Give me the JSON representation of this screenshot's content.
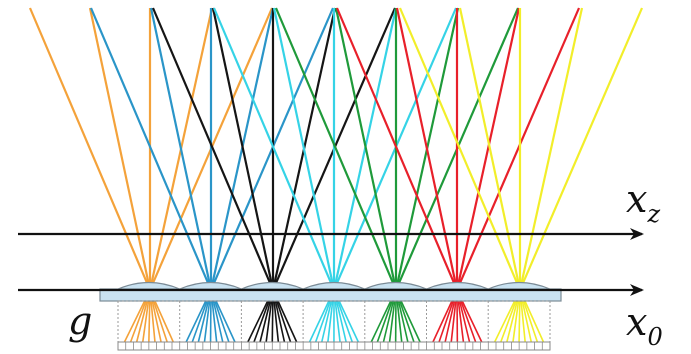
{
  "labels": {
    "axis_top": "x",
    "axis_top_sub": "z",
    "axis_bottom": "x",
    "axis_bottom_sub": "0",
    "gap": "g"
  },
  "colors": {
    "orange": "#f4a23a",
    "blue": "#2a95c8",
    "black": "#151515",
    "cyan": "#35d3e6",
    "green": "#1f9a3a",
    "red": "#e8202a",
    "yellow": "#f2ee2a",
    "axis": "#111111",
    "lens_fill": "#c9e2f1",
    "lens_stroke": "#7b8b96",
    "pixel_stroke": "#8a8a8a"
  },
  "focal_points": [
    {
      "name": "focus-orange",
      "color": "orange"
    },
    {
      "name": "focus-blue",
      "color": "blue"
    },
    {
      "name": "focus-black",
      "color": "black"
    },
    {
      "name": "focus-cyan",
      "color": "cyan"
    },
    {
      "name": "focus-green",
      "color": "green"
    },
    {
      "name": "focus-red",
      "color": "red"
    },
    {
      "name": "focus-yellow",
      "color": "yellow"
    }
  ],
  "lens_count": 7
}
